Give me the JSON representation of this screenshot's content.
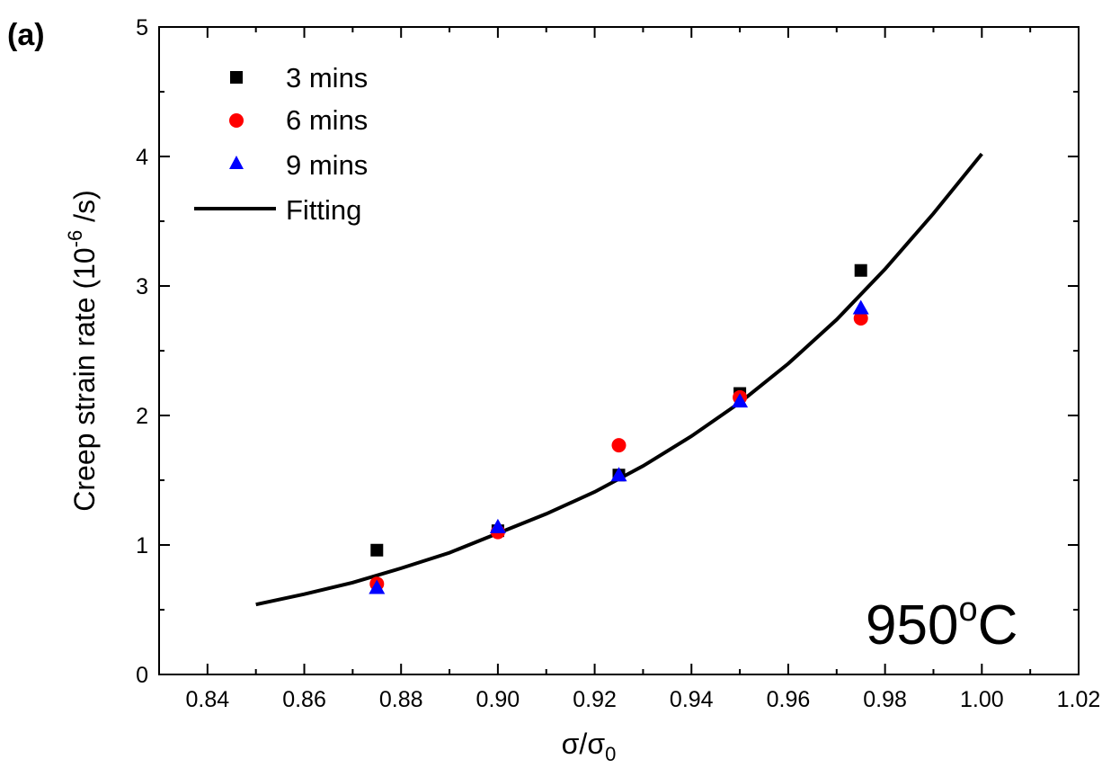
{
  "chart_data": {
    "type": "scatter",
    "panel_label": "(a)",
    "xlabel_main": "σ/σ",
    "xlabel_sub": "0",
    "ylabel_main": "Creep strain rate (10",
    "ylabel_sup": "-6",
    "ylabel_tail": " /s)",
    "xlim": [
      0.83,
      1.02
    ],
    "ylim": [
      0,
      5
    ],
    "x_ticks": [
      "0.84",
      "0.86",
      "0.88",
      "0.90",
      "0.92",
      "0.94",
      "0.96",
      "0.98",
      "1.00",
      "1.02"
    ],
    "y_ticks": [
      "0",
      "1",
      "2",
      "3",
      "4",
      "5"
    ],
    "legend_position": "top-left",
    "series": [
      {
        "name": "3 mins",
        "marker": "square",
        "color": "#000000",
        "x": [
          0.875,
          0.9,
          0.925,
          0.95,
          0.975
        ],
        "y": [
          0.96,
          1.11,
          1.54,
          2.17,
          3.12
        ]
      },
      {
        "name": "6 mins",
        "marker": "circle",
        "color": "#ff0000",
        "x": [
          0.875,
          0.9,
          0.925,
          0.95,
          0.975
        ],
        "y": [
          0.7,
          1.1,
          1.77,
          2.14,
          2.75
        ]
      },
      {
        "name": "9 mins",
        "marker": "triangle",
        "color": "#0000ff",
        "x": [
          0.875,
          0.9,
          0.925,
          0.95,
          0.975
        ],
        "y": [
          0.67,
          1.14,
          1.54,
          2.11,
          2.83
        ]
      }
    ],
    "fit": {
      "name": "Fitting",
      "color": "#000000",
      "x": [
        0.85,
        0.86,
        0.87,
        0.88,
        0.89,
        0.9,
        0.91,
        0.92,
        0.93,
        0.94,
        0.95,
        0.96,
        0.97,
        0.98,
        0.99,
        1.0
      ],
      "y": [
        0.54,
        0.62,
        0.71,
        0.82,
        0.94,
        1.09,
        1.24,
        1.41,
        1.61,
        1.84,
        2.1,
        2.4,
        2.74,
        3.13,
        3.56,
        4.02
      ]
    },
    "annotation_main": "950",
    "annotation_sup": "o",
    "annotation_tail": "C"
  }
}
